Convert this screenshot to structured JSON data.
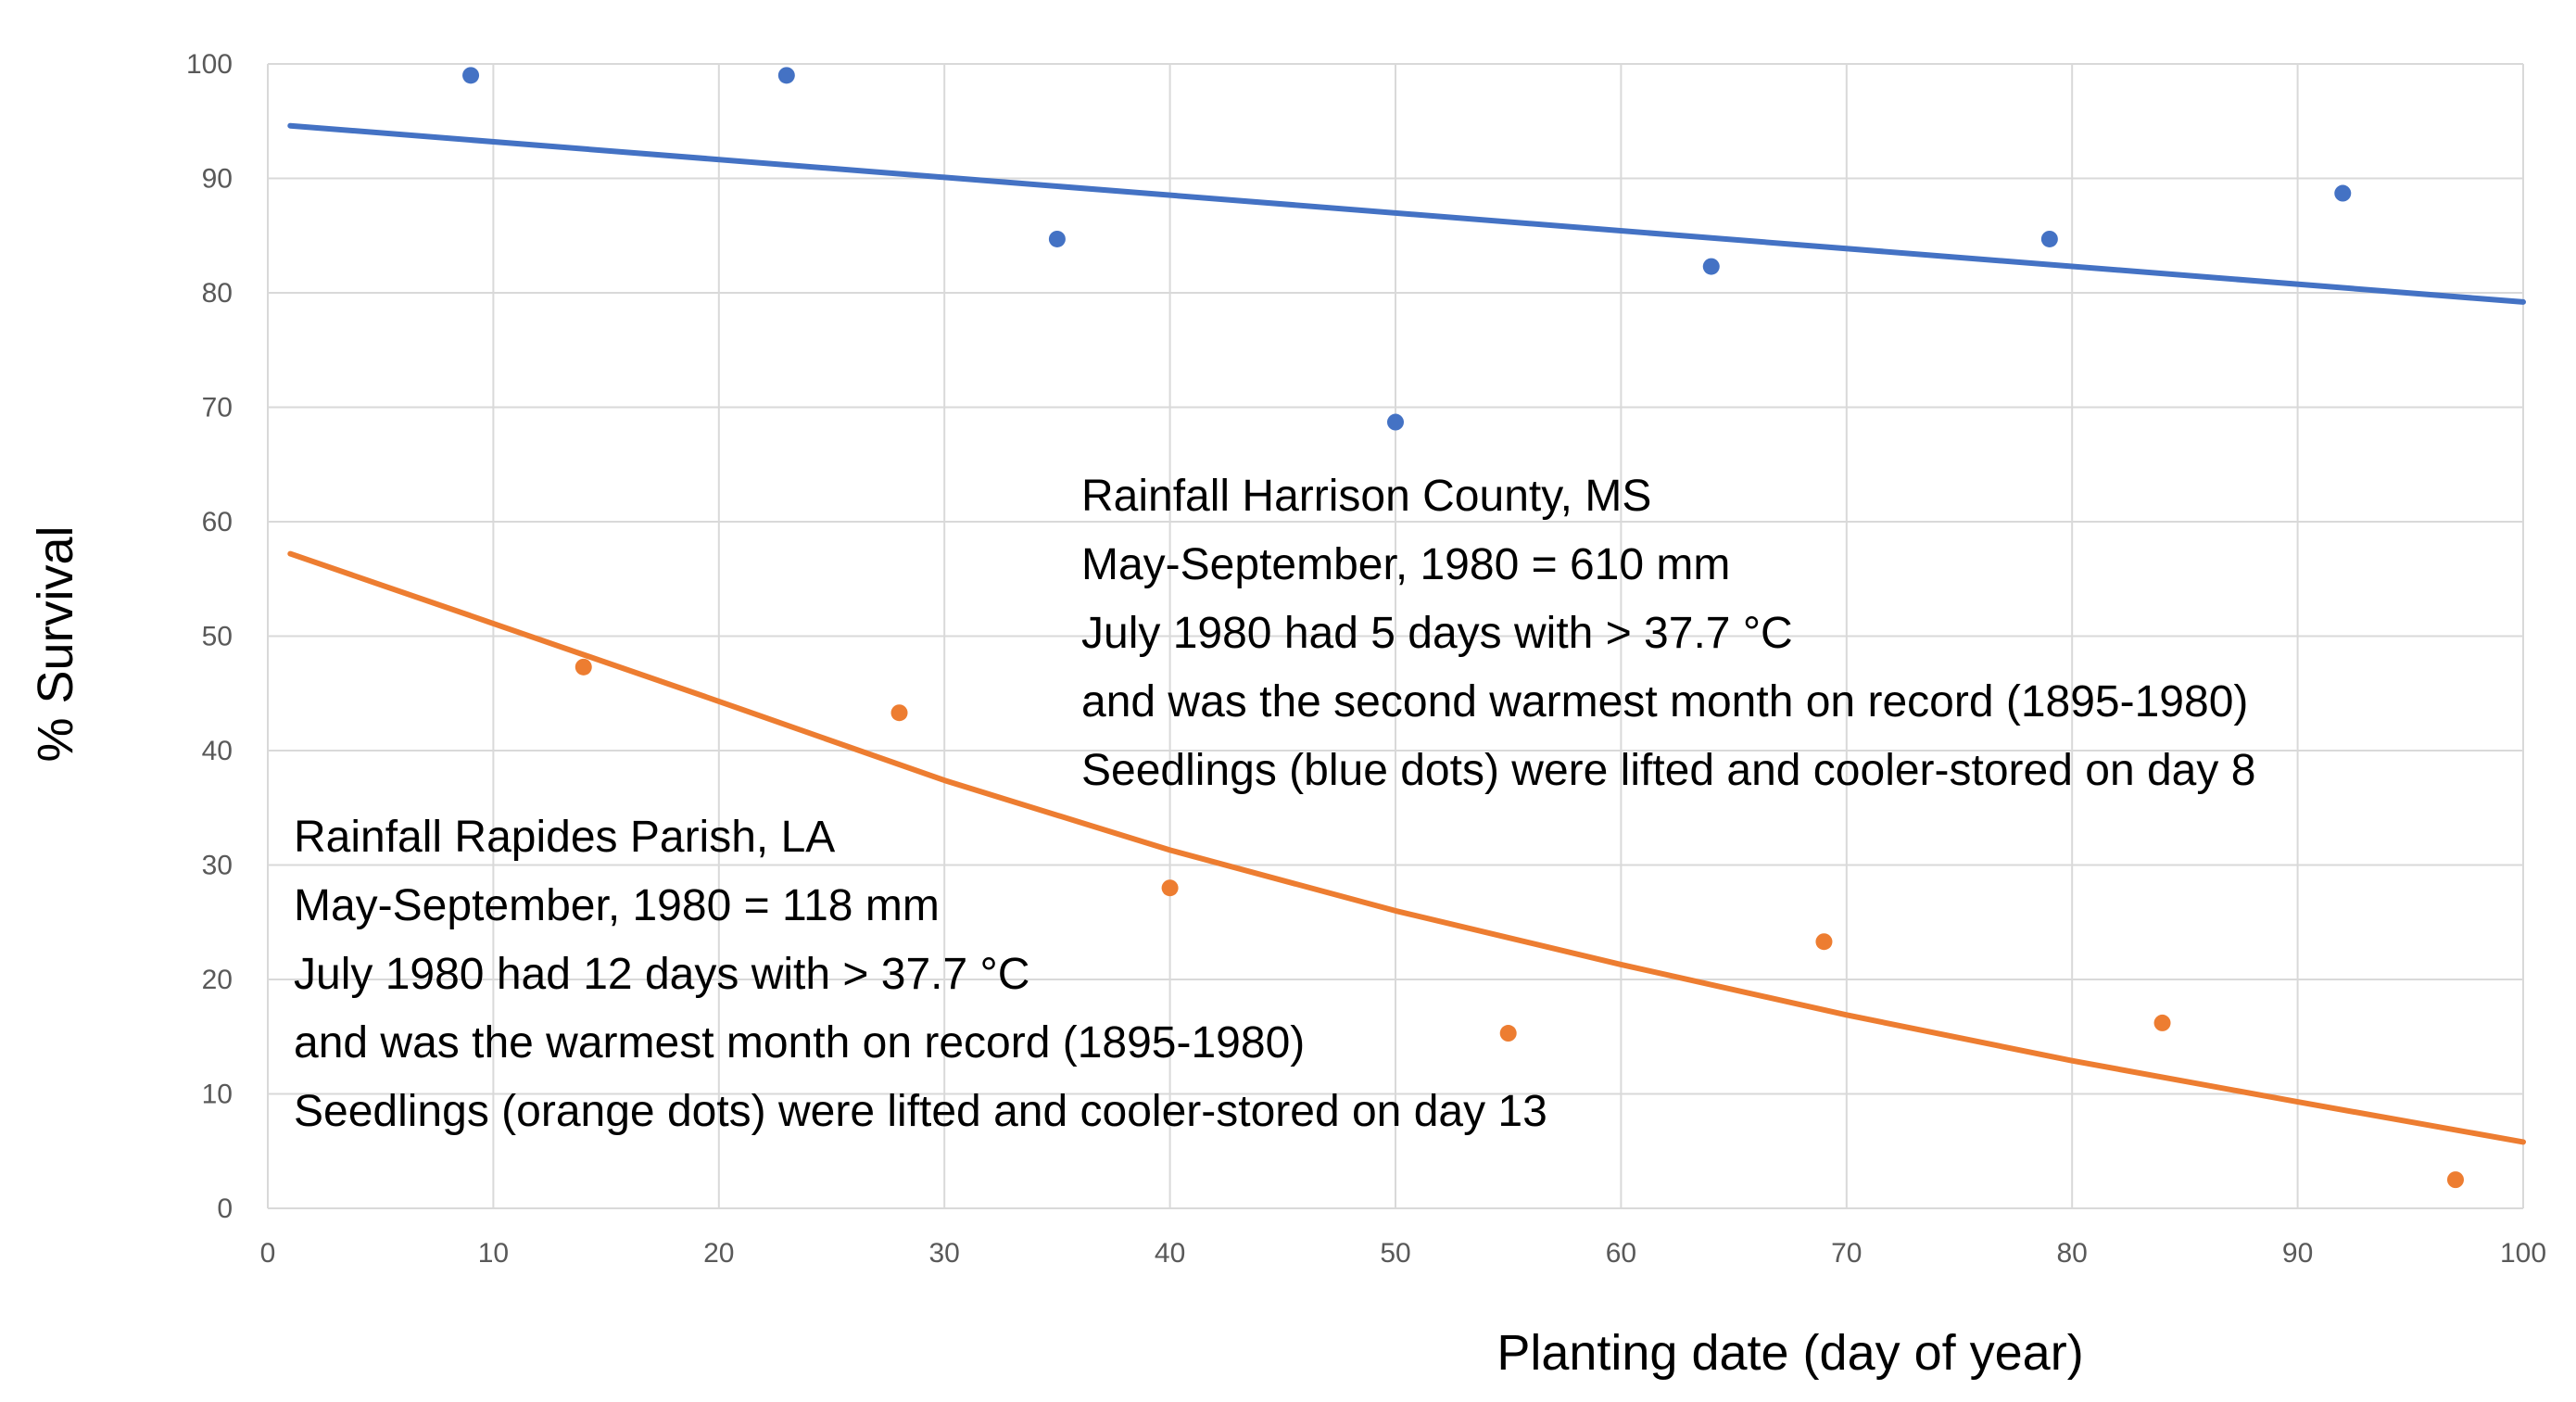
{
  "chart_data": {
    "type": "scatter",
    "title": "",
    "xlabel": "Planting date (day of year)",
    "ylabel": "% Survival",
    "xlim": [
      0,
      100
    ],
    "ylim": [
      0,
      100
    ],
    "x_ticks": [
      0,
      10,
      20,
      30,
      40,
      50,
      60,
      70,
      80,
      90,
      100
    ],
    "y_ticks": [
      0,
      10,
      20,
      30,
      40,
      50,
      60,
      70,
      80,
      90,
      100
    ],
    "grid": true,
    "series": [
      {
        "name": "Harrison County, MS (blue dots)",
        "color": "#4472C4",
        "x": [
          9,
          23,
          35,
          50,
          64,
          79,
          92
        ],
        "y": [
          99,
          99,
          84.7,
          68.7,
          82.3,
          84.7,
          88.7
        ],
        "trendline": {
          "kind": "linear",
          "x": [
            1,
            100
          ],
          "y": [
            94.6,
            79.2
          ]
        }
      },
      {
        "name": "Rapides Parish, LA (orange dots)",
        "color": "#ED7D31",
        "x": [
          14,
          28,
          40,
          55,
          69,
          84,
          97
        ],
        "y": [
          47.3,
          43.3,
          28,
          15.3,
          23.3,
          16.2,
          2.5
        ],
        "trendline": {
          "kind": "curve",
          "x": [
            1,
            10,
            20,
            30,
            40,
            50,
            60,
            70,
            80,
            90,
            100
          ],
          "y": [
            57.2,
            51.1,
            44.3,
            37.4,
            31.3,
            26,
            21.3,
            16.9,
            12.9,
            9.3,
            5.8
          ]
        }
      }
    ],
    "annotations": [
      {
        "name": "harrison",
        "lines": [
          "Rainfall Harrison County, MS",
          "May-September, 1980 = 610 mm",
          "July 1980 had 5 days with > 37.7 °C",
          "and was the second warmest month on record (1895-1980)",
          "Seedlings (blue dots) were lifted and cooler-stored on day 8"
        ]
      },
      {
        "name": "rapides",
        "lines": [
          "Rainfall Rapides Parish, LA",
          "May-September, 1980 = 118 mm",
          "July 1980 had 12 days with > 37.7 °C",
          "and was the warmest month on record (1895-1980)",
          "Seedlings (orange dots) were lifted and cooler-stored on day 13"
        ]
      }
    ]
  }
}
